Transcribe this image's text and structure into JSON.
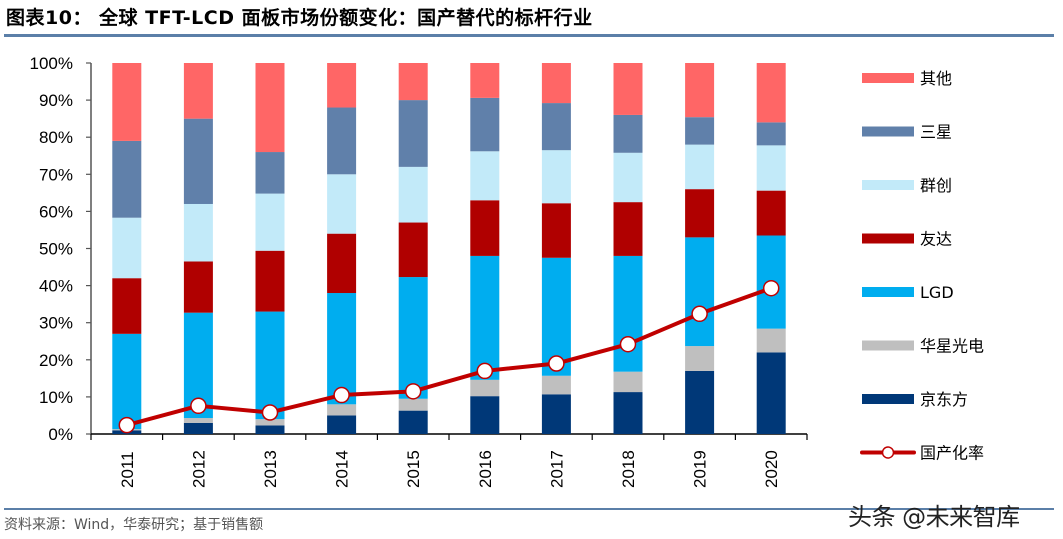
{
  "header": {
    "title": "图表10：  全球 TFT-LCD 面板市场份额变化：国产替代的标杆行业"
  },
  "footer": {
    "source": "资料来源：Wind，华泰研究；基于销售额",
    "watermark": "头条 @未来智库"
  },
  "chart_data": {
    "type": "bar",
    "stacked": true,
    "title": "全球 TFT-LCD 面板市场份额变化：国产替代的标杆行业",
    "xlabel": "",
    "ylabel": "",
    "ylim": [
      0,
      100
    ],
    "y_ticks": [
      "0%",
      "10%",
      "20%",
      "30%",
      "40%",
      "50%",
      "60%",
      "70%",
      "80%",
      "90%",
      "100%"
    ],
    "grid": false,
    "legend_position": "right",
    "categories": [
      "2011",
      "2012",
      "2013",
      "2014",
      "2015",
      "2016",
      "2017",
      "2018",
      "2019",
      "2020"
    ],
    "series": [
      {
        "name": "京东方",
        "color": "#003878",
        "values": [
          1.0,
          3.0,
          2.3,
          5.0,
          6.3,
          10.2,
          10.7,
          11.3,
          17.0,
          22.0
        ]
      },
      {
        "name": "华星光电",
        "color": "#bfbfbf",
        "values": [
          0.3,
          1.3,
          1.7,
          3.0,
          3.2,
          4.4,
          5.0,
          5.5,
          6.7,
          6.4
        ]
      },
      {
        "name": "LGD",
        "color": "#00adef",
        "values": [
          25.7,
          28.4,
          29.0,
          30.0,
          32.8,
          33.4,
          31.8,
          31.2,
          29.3,
          25.1
        ]
      },
      {
        "name": "友达",
        "color": "#b00000",
        "values": [
          15.0,
          13.8,
          16.4,
          16.0,
          14.7,
          15.0,
          14.7,
          14.5,
          13.0,
          12.1
        ]
      },
      {
        "name": "群创",
        "color": "#c2eaf9",
        "values": [
          16.3,
          15.5,
          15.4,
          16.0,
          15.0,
          13.2,
          14.3,
          13.3,
          12.0,
          12.2
        ]
      },
      {
        "name": "三星",
        "color": "#6080aa",
        "values": [
          20.7,
          23.0,
          11.2,
          18.0,
          18.0,
          14.4,
          12.7,
          10.2,
          7.4,
          6.2
        ]
      },
      {
        "name": "其他",
        "color": "#ff6666",
        "values": [
          21.0,
          15.0,
          24.0,
          12.0,
          10.0,
          9.4,
          10.8,
          14.0,
          14.6,
          16.0
        ]
      }
    ],
    "line_series": {
      "name": "国产化率",
      "color": "#c00000",
      "values": [
        2.4,
        7.6,
        5.8,
        10.5,
        11.5,
        17.0,
        19.0,
        24.2,
        32.4,
        39.3
      ]
    },
    "legend": [
      "其他",
      "三星",
      "群创",
      "友达",
      "LGD",
      "华星光电",
      "京东方",
      "国产化率"
    ]
  }
}
